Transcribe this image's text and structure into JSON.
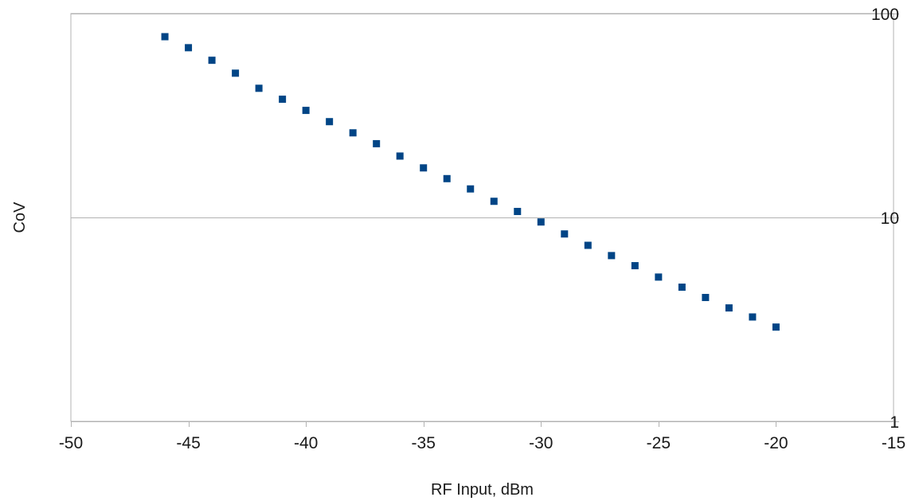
{
  "chart_data": {
    "type": "scatter",
    "title": "",
    "xlabel": "RF Input, dBm",
    "ylabel": "CoV",
    "xlim": [
      -50,
      -15
    ],
    "ylim": [
      1,
      100
    ],
    "y_scale": "log",
    "x_ticks": [
      "-50",
      "-45",
      "-40",
      "-35",
      "-30",
      "-25",
      "-20",
      "-15"
    ],
    "x_tick_values": [
      -50,
      -45,
      -40,
      -35,
      -30,
      -25,
      -20,
      -15
    ],
    "y_ticks": [
      "1",
      "10",
      "100"
    ],
    "y_tick_values": [
      1,
      10,
      100
    ],
    "y_axis_side": "right",
    "grid": "horizontal major lines",
    "legend": "none",
    "series": [
      {
        "color": "#004586",
        "marker": "square",
        "x": [
          -46,
          -45,
          -44,
          -43,
          -42,
          -41,
          -40,
          -39,
          -38,
          -37,
          -36,
          -35,
          -34,
          -33,
          -32,
          -31,
          -30,
          -29,
          -28,
          -27,
          -26,
          -25,
          -24,
          -23,
          -22,
          -21,
          -20
        ],
        "y": [
          77,
          68,
          59,
          51,
          43,
          38,
          33.5,
          29.5,
          26,
          23,
          20,
          17.5,
          15.5,
          13.8,
          12,
          10.7,
          9.5,
          8.3,
          7.3,
          6.5,
          5.8,
          5.1,
          4.55,
          4.05,
          3.6,
          3.25,
          2.9
        ]
      }
    ]
  }
}
